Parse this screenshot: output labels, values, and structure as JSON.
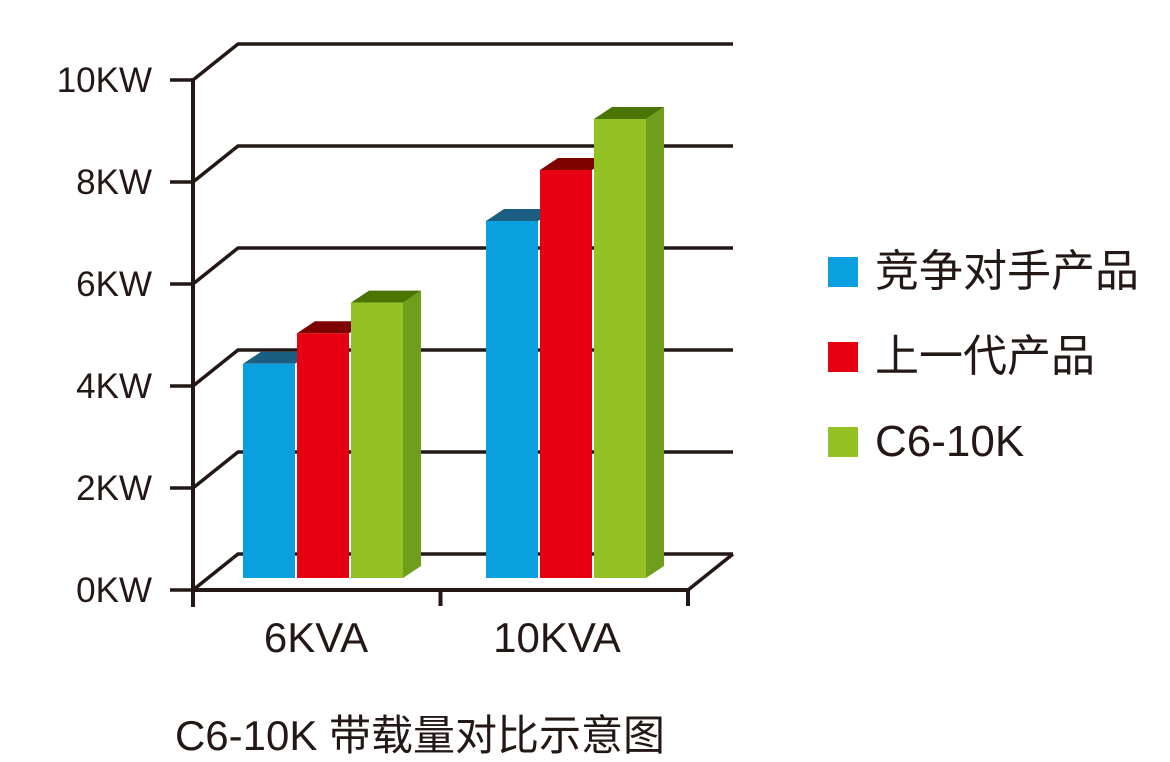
{
  "chart_data": {
    "type": "bar",
    "style": "3d",
    "title": "C6-10K 带载量对比示意图",
    "categories": [
      "6KVA",
      "10KVA"
    ],
    "series": [
      {
        "name": "竞争对手产品",
        "values": [
          4.2,
          7.0
        ],
        "color": "#0AA0E0",
        "top_color": "#1A5E82"
      },
      {
        "name": "上一代产品",
        "values": [
          4.8,
          8.0
        ],
        "color": "#E60012",
        "top_color": "#7E0200"
      },
      {
        "name": "C6-10K",
        "values": [
          5.4,
          9.0
        ],
        "color": "#94C123",
        "top_color": "#4A7503",
        "side_color": "#6F9E1C"
      }
    ],
    "y_ticks": [
      "0KW",
      "2KW",
      "4KW",
      "6KW",
      "8KW",
      "10KW"
    ],
    "y_tick_values": [
      0,
      2,
      4,
      6,
      8,
      10
    ],
    "ylim": [
      0,
      10
    ],
    "y_unit": "KW",
    "grid": true,
    "legend_position": "right"
  },
  "colors": {
    "axis": "#231815",
    "text": "#231815",
    "background": "#FFFFFF"
  }
}
